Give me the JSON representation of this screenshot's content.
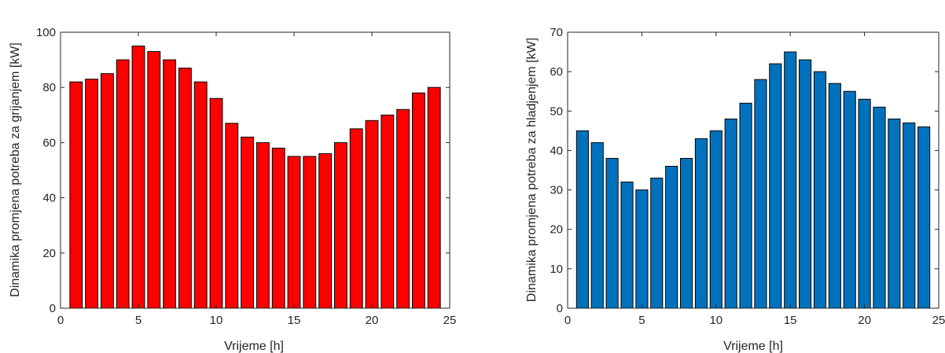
{
  "chart_data": [
    {
      "type": "bar",
      "xlabel": "Vrijeme [h]",
      "ylabel": "Dinamika promjena potreba za grijanjem [kW]",
      "xlim": [
        0,
        25
      ],
      "ylim": [
        0,
        100
      ],
      "xticks": [
        "0",
        "5",
        "10",
        "15",
        "20",
        "25"
      ],
      "yticks": [
        "0",
        "20",
        "40",
        "60",
        "80",
        "100"
      ],
      "x": [
        1,
        2,
        3,
        4,
        5,
        6,
        7,
        8,
        9,
        10,
        11,
        12,
        13,
        14,
        15,
        16,
        17,
        18,
        19,
        20,
        21,
        22,
        23,
        24
      ],
      "values": [
        82,
        83,
        85,
        90,
        95,
        93,
        90,
        87,
        82,
        76,
        67,
        62,
        60,
        58,
        55,
        55,
        56,
        60,
        65,
        68,
        70,
        72,
        78,
        80
      ],
      "bar_color": "#ff0000",
      "grid": false
    },
    {
      "type": "bar",
      "xlabel": "Vrijeme [h]",
      "ylabel": "Dinamika promjena potreba za hladjenjem [kW]",
      "xlim": [
        0,
        25
      ],
      "ylim": [
        0,
        70
      ],
      "xticks": [
        "0",
        "5",
        "10",
        "15",
        "20",
        "25"
      ],
      "yticks": [
        "0",
        "10",
        "20",
        "30",
        "40",
        "50",
        "60",
        "70"
      ],
      "x": [
        1,
        2,
        3,
        4,
        5,
        6,
        7,
        8,
        9,
        10,
        11,
        12,
        13,
        14,
        15,
        16,
        17,
        18,
        19,
        20,
        21,
        22,
        23,
        24
      ],
      "values": [
        45,
        42,
        38,
        32,
        30,
        33,
        36,
        38,
        43,
        45,
        48,
        52,
        58,
        62,
        65,
        63,
        60,
        57,
        55,
        53,
        51,
        48,
        47,
        46
      ],
      "bar_color": "#0072bd",
      "grid": false
    }
  ]
}
